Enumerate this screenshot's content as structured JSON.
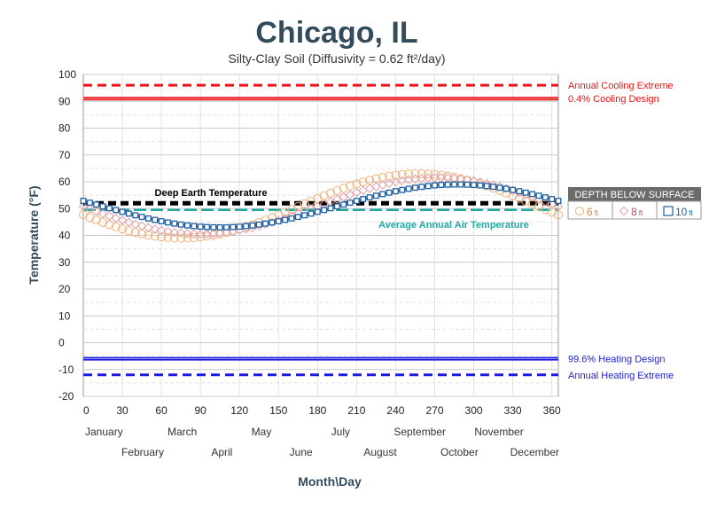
{
  "chart_data": {
    "type": "line",
    "title": "Chicago, IL",
    "subtitle": "Silty-Clay Soil (Diffusivity = 0.62 ft²/day)",
    "xlabel": "Month\\Day",
    "ylabel": "Temperature (°F)",
    "xlim": [
      0,
      365
    ],
    "ylim": [
      -20,
      100
    ],
    "x_ticks": [
      0,
      30,
      60,
      90,
      120,
      150,
      180,
      210,
      240,
      270,
      300,
      330,
      360
    ],
    "y_ticks": [
      100,
      90,
      80,
      70,
      60,
      50,
      40,
      30,
      20,
      10,
      0,
      -10,
      -20
    ],
    "grid": true,
    "months": [
      {
        "name": "January",
        "row": 1
      },
      {
        "name": "February",
        "row": 2
      },
      {
        "name": "March",
        "row": 1
      },
      {
        "name": "April",
        "row": 2
      },
      {
        "name": "May",
        "row": 1
      },
      {
        "name": "June",
        "row": 2
      },
      {
        "name": "July",
        "row": 1
      },
      {
        "name": "August",
        "row": 2
      },
      {
        "name": "September",
        "row": 1
      },
      {
        "name": "October",
        "row": 2
      },
      {
        "name": "November",
        "row": 1
      },
      {
        "name": "December",
        "row": 2
      }
    ],
    "reference_lines": [
      {
        "name": "Annual Cooling Extreme",
        "value": 96,
        "color": "#e8141a",
        "style": "dashed"
      },
      {
        "name": "0.4% Cooling Design",
        "value": 91,
        "color": "#e8141a",
        "style": "solid"
      },
      {
        "name": "99.6% Heating Design",
        "value": -6,
        "color": "#1a1ae0",
        "style": "solid"
      },
      {
        "name": "Annual Heating Extreme",
        "value": -12,
        "color": "#1a1ae0",
        "style": "dashed"
      }
    ],
    "annotations": [
      {
        "text": "Deep Earth Temperature",
        "value": 52,
        "color": "#000000",
        "style": "dashed"
      },
      {
        "text": "Average Annual Air Temperature",
        "value": 49.5,
        "color": "#1fa9a0",
        "style": "dashed"
      }
    ],
    "legend": {
      "title": "DEPTH BELOW SURFACE",
      "placement": "right",
      "unit": "ft"
    },
    "series": [
      {
        "name": "6",
        "marker": "circle",
        "color": "#f0b27a",
        "mean": 51,
        "amplitude": 12,
        "min_day": 75
      },
      {
        "name": "8",
        "marker": "diamond",
        "color": "#e0a0a8",
        "mean": 51,
        "amplitude": 10.5,
        "min_day": 90
      },
      {
        "name": "10",
        "marker": "square",
        "color": "#1f5f9f",
        "mean": 51,
        "amplitude": 8,
        "min_day": 105
      }
    ],
    "sample_days": [
      0,
      5,
      10,
      15,
      20,
      25,
      30,
      35,
      40,
      45,
      50,
      55,
      60,
      65,
      70,
      75,
      80,
      85,
      90,
      95,
      100,
      105,
      110,
      115,
      120,
      125,
      130,
      135,
      140,
      145,
      150,
      155,
      160,
      165,
      170,
      175,
      180,
      185,
      190,
      195,
      200,
      205,
      210,
      215,
      220,
      225,
      230,
      235,
      240,
      245,
      250,
      255,
      260,
      265,
      270,
      275,
      280,
      285,
      290,
      295,
      300,
      305,
      310,
      315,
      320,
      325,
      330,
      335,
      340,
      345,
      350,
      355,
      360,
      365
    ]
  }
}
